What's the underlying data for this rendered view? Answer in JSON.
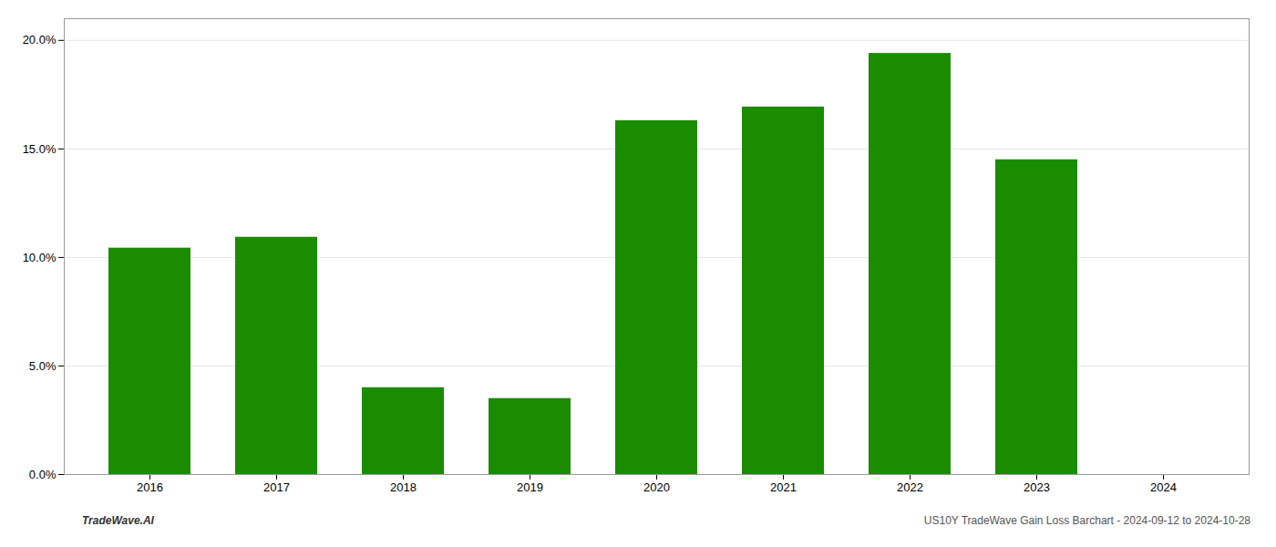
{
  "chart_data": {
    "type": "bar",
    "categories": [
      "2016",
      "2017",
      "2018",
      "2019",
      "2020",
      "2021",
      "2022",
      "2023",
      "2024"
    ],
    "values": [
      0.1043,
      0.1093,
      0.04,
      0.035,
      0.163,
      0.1693,
      0.194,
      0.145,
      0.0
    ],
    "color": "#1a8c00",
    "ylim": [
      0,
      0.21
    ],
    "yticks": [
      {
        "value": 0.0,
        "label": "0.0%"
      },
      {
        "value": 0.05,
        "label": "5.0%"
      },
      {
        "value": 0.1,
        "label": "10.0%"
      },
      {
        "value": 0.15,
        "label": "15.0%"
      },
      {
        "value": 0.2,
        "label": "20.0%"
      }
    ],
    "grid": true,
    "annotations": [
      "TradeWave.AI",
      "US10Y TradeWave Gain Loss Barchart - 2024-09-12 to 2024-10-28"
    ]
  }
}
